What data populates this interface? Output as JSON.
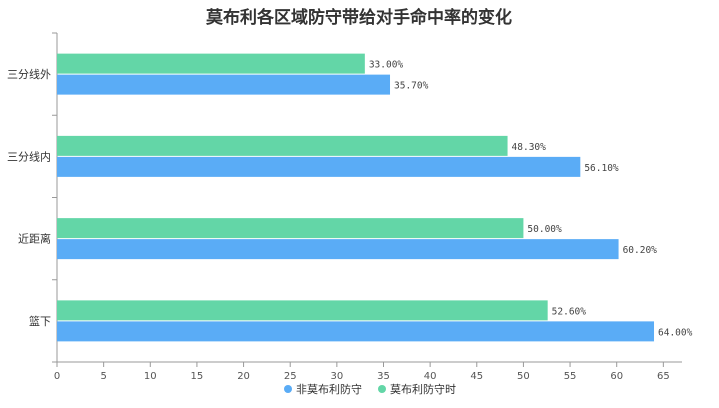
{
  "chart_data": {
    "type": "bar",
    "orientation": "horizontal",
    "title": "莫布利各区域防守带给对手命中率的变化",
    "categories": [
      "三分线外",
      "三分线内",
      "近距离",
      "篮下"
    ],
    "series": [
      {
        "name": "莫布利防守时",
        "color": "#63d6a7",
        "values": [
          33.0,
          48.3,
          50.0,
          52.6
        ],
        "labels": [
          "33.00%",
          "48.30%",
          "50.00%",
          "52.60%"
        ]
      },
      {
        "name": "非莫布利防守",
        "color": "#5aacf6",
        "values": [
          35.7,
          56.1,
          60.2,
          64.0
        ],
        "labels": [
          "35.70%",
          "56.10%",
          "60.20%",
          "64.00%"
        ]
      }
    ],
    "xlim": [
      0,
      67
    ],
    "xticks": [
      0,
      5,
      10,
      15,
      20,
      25,
      30,
      35,
      40,
      45,
      50,
      55,
      60,
      65
    ],
    "legend": {
      "position": "bottom",
      "items": [
        {
          "name": "非莫布利防守",
          "color": "#5aacf6"
        },
        {
          "name": "莫布利防守时",
          "color": "#63d6a7"
        }
      ]
    },
    "grid": false
  }
}
